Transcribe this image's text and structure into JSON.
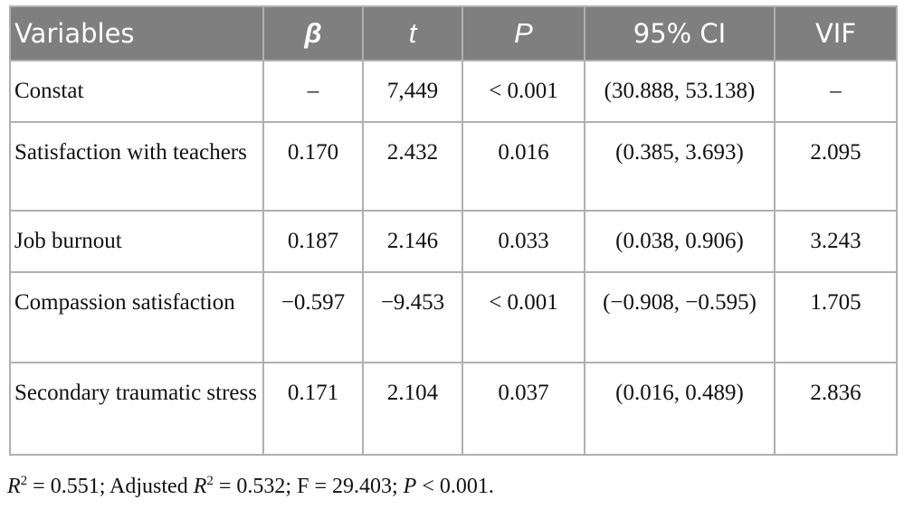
{
  "table": {
    "header": [
      "Variables",
      "β",
      "t",
      "P",
      "95% CI",
      "VIF"
    ],
    "rows": [
      [
        "Constat",
        "–",
        "7,449",
        "< 0.001",
        "(30.888, 53.138)",
        "–"
      ],
      [
        "Satisfaction with teachers",
        "0.170",
        "2.432",
        "0.016",
        "(0.385, 3.693)",
        "2.095"
      ],
      [
        "Job burnout",
        "0.187",
        "2.146",
        "0.033",
        "(0.038, 0.906)",
        "3.243"
      ],
      [
        "Compassion satisfaction",
        "−0.597",
        "−9.453",
        "< 0.001",
        "(−0.908, −0.595)",
        "1.705"
      ],
      [
        "Secondary traumatic stress",
        "0.171",
        "2.104",
        "0.037",
        "(0.016, 0.489)",
        "2.836"
      ]
    ]
  },
  "footnote": [
    "R",
    "2",
    " = 0.551; Adjusted ",
    "R",
    "2",
    " = 0.532; F = 29.403; ",
    "P",
    " < 0.001."
  ]
}
